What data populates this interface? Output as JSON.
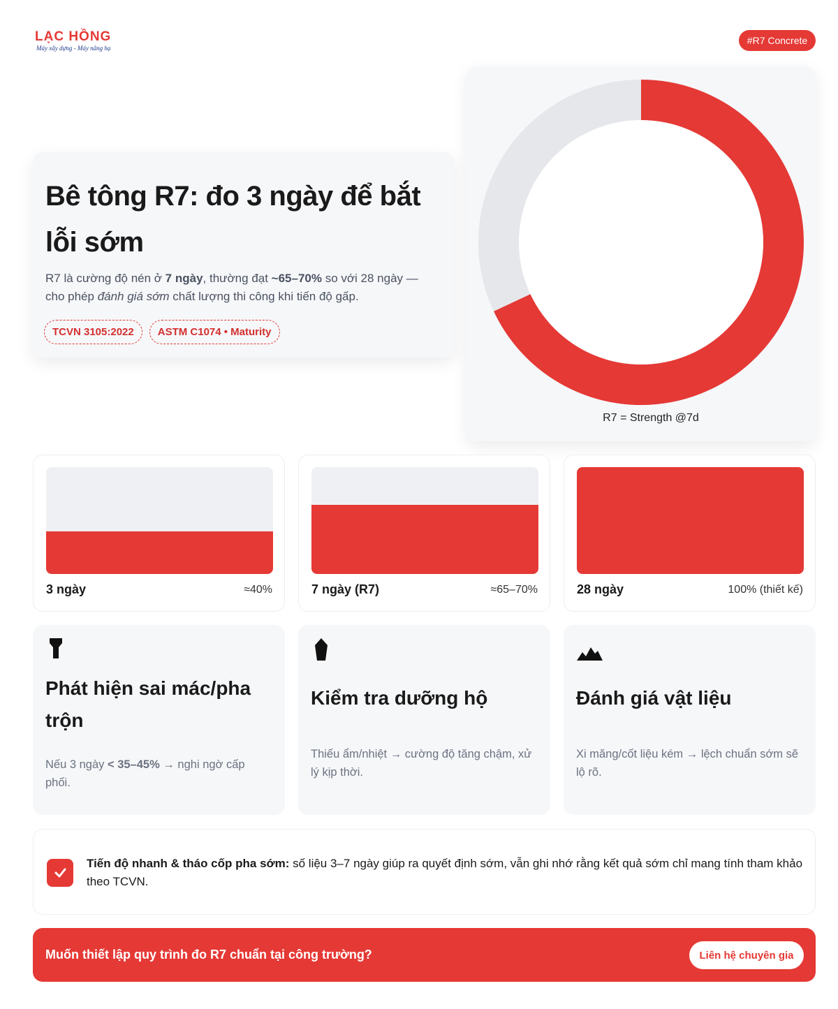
{
  "header": {
    "logo_title": "LẠC HỒNG",
    "logo_subtitle": "Máy xây dựng - Máy nâng hạ",
    "tag": "#R7 Concrete"
  },
  "hero": {
    "title": "Bê tông R7: đo 3 ngày để bắt lỗi sớm",
    "description": [
      "R7 là cường độ nén ở ",
      "7 ngày",
      ", thường đạt ",
      "~65–70%",
      " so với 28 ngày — cho phép ",
      "đánh giá sớm",
      " chất lượng thi công khi tiến độ gấp."
    ],
    "badges": [
      "TCVN 3105:2022",
      "ASTM C1074 • Maturity"
    ]
  },
  "donut": {
    "value": 68,
    "caption": "R7 = Strength @7d"
  },
  "strength_bars": [
    {
      "label": "3 ngày",
      "value": 40,
      "value_label": "≈40%"
    },
    {
      "label": "7 ngày (R7)",
      "value": 65,
      "value_label": "≈65–70%"
    },
    {
      "label": "28 ngày",
      "value": 100,
      "value_label": "100% (thiết kế)"
    }
  ],
  "features": [
    {
      "title": "Phát hiện sai mác/pha trộn",
      "description": [
        "Nếu 3 ngày ",
        "< 35–45%",
        " → nghi ngờ cấp phối."
      ]
    },
    {
      "title": "Kiểm tra dưỡng hộ",
      "description": [
        "Thiếu ẩm/nhiệt → cường độ tăng chậm, xử lý kịp thời."
      ]
    },
    {
      "title": "Đánh giá vật liệu",
      "description": [
        "Xi măng/cốt liệu kém → lệch chuẩn sớm sẽ lộ rõ."
      ]
    }
  ],
  "note": {
    "lead": "Tiến độ nhanh & tháo cốp pha sớm:",
    "text": " số liệu 3–7 ngày giúp ra quyết định sớm, vẫn ghi nhớ rằng kết quả sớm chỉ mang tính tham khảo theo TCVN."
  },
  "cta": {
    "text": "Muốn thiết lập quy trình đo R7 chuẩn tại công trường?",
    "button": "Liên hệ chuyên gia"
  }
}
